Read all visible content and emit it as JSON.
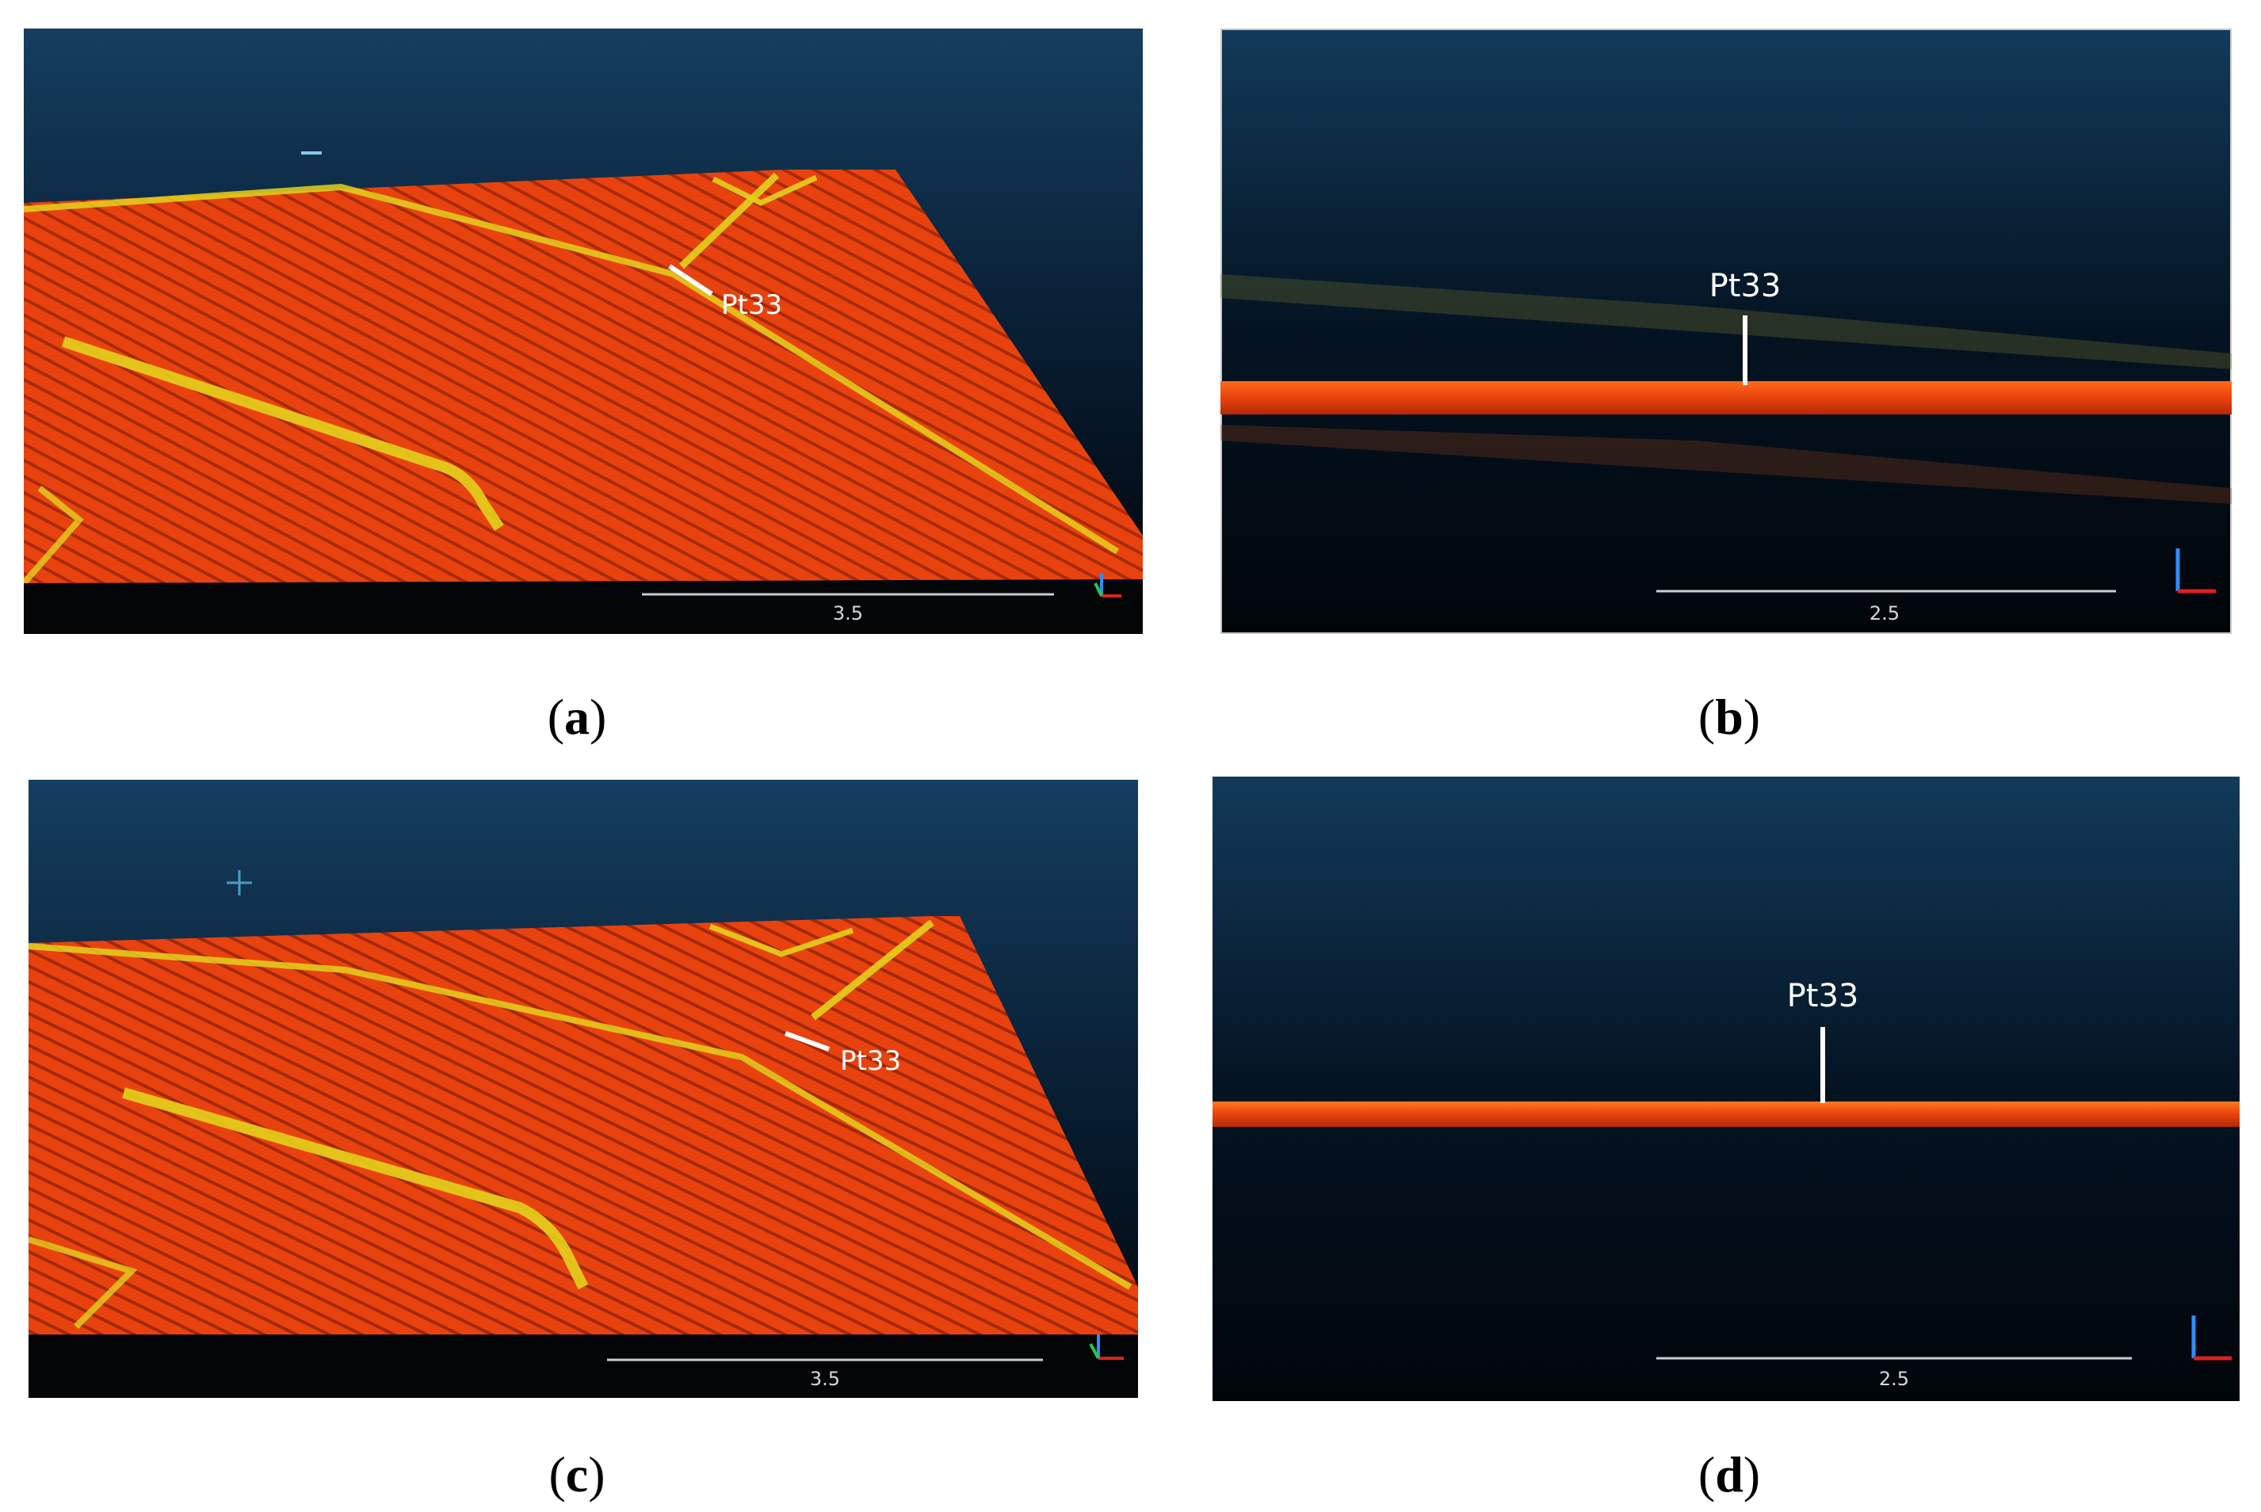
{
  "panels": [
    {
      "id": "a",
      "point_label": "Pt33",
      "scale_label": "3.5",
      "caption_letter": "a",
      "view": "oblique"
    },
    {
      "id": "b",
      "point_label": "Pt33",
      "scale_label": "2.5",
      "caption_letter": "b",
      "view": "side"
    },
    {
      "id": "c",
      "point_label": "Pt33",
      "scale_label": "3.5",
      "caption_letter": "c",
      "view": "oblique"
    },
    {
      "id": "d",
      "point_label": "Pt33",
      "scale_label": "2.5",
      "caption_letter": "d",
      "view": "side"
    }
  ],
  "colors": {
    "sky_top": "#123a5a",
    "sky_bottom": "#02090f",
    "surface": "#e8420e",
    "surface_dark": "#b52a05",
    "edge_line": "#e3d21c",
    "label": "#ffffff",
    "axis_x": "#e02020",
    "axis_y": "#22cc44",
    "axis_z": "#2f8cff"
  },
  "icons": [
    "axis-gizmo-icon",
    "crosshair-icon"
  ]
}
